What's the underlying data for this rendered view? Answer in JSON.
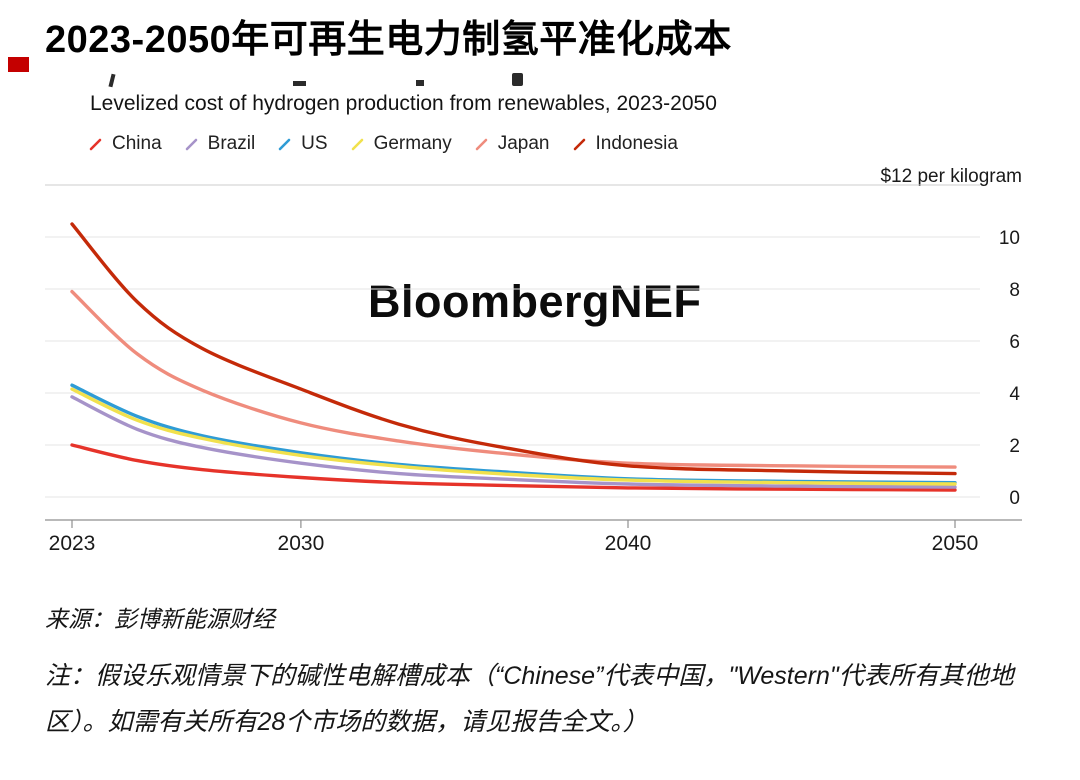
{
  "page": {
    "title": "2023-2050年可再生电力制氢平准化成本",
    "subtitle": "Levelized cost of hydrogen production from renewables, 2023-2050",
    "watermark": "BloombergNEF",
    "source": "来源：彭博新能源财经",
    "note": "注：假设乐观情景下的碱性电解槽成本（“Chinese”代表中国，\"Western\"代表所有其他地区）。如需有关所有28个市场的数据，请见报告全文。）"
  },
  "chart_data": {
    "type": "line",
    "title": "Levelized cost of hydrogen production from renewables, 2023-2050",
    "unit_label": "$12 per kilogram",
    "ylabel": "$ per kilogram",
    "xlabel": "",
    "x": [
      2023,
      2025,
      2027,
      2030,
      2033,
      2036,
      2040,
      2045,
      2050
    ],
    "series": [
      {
        "name": "China",
        "color": "#e6332a",
        "values": [
          2.0,
          1.4,
          1.05,
          0.75,
          0.55,
          0.45,
          0.35,
          0.3,
          0.27
        ]
      },
      {
        "name": "Brazil",
        "color": "#a693c9",
        "values": [
          3.85,
          2.6,
          1.9,
          1.3,
          0.9,
          0.7,
          0.5,
          0.42,
          0.38
        ]
      },
      {
        "name": "US",
        "color": "#2f9cd5",
        "values": [
          4.3,
          3.1,
          2.35,
          1.7,
          1.25,
          0.98,
          0.7,
          0.6,
          0.55
        ]
      },
      {
        "name": "Germany",
        "color": "#f1e14d",
        "values": [
          4.15,
          2.95,
          2.25,
          1.6,
          1.18,
          0.9,
          0.65,
          0.55,
          0.5
        ]
      },
      {
        "name": "Japan",
        "color": "#ef8c7d",
        "values": [
          7.9,
          5.5,
          4.1,
          2.85,
          2.15,
          1.7,
          1.3,
          1.2,
          1.15
        ]
      },
      {
        "name": "Indonesia",
        "color": "#c42a09",
        "values": [
          10.5,
          7.5,
          5.7,
          4.15,
          2.8,
          1.95,
          1.2,
          1.0,
          0.9
        ]
      }
    ],
    "xticks": [
      2023,
      2030,
      2040,
      2050
    ],
    "yticks": [
      0,
      2,
      4,
      6,
      8,
      10
    ],
    "grid_values": [
      0,
      2,
      4,
      6,
      8,
      10,
      12
    ],
    "xlim": [
      2023,
      2050
    ],
    "ylim": [
      0,
      12
    ],
    "grid": true,
    "legend_position": "top"
  }
}
